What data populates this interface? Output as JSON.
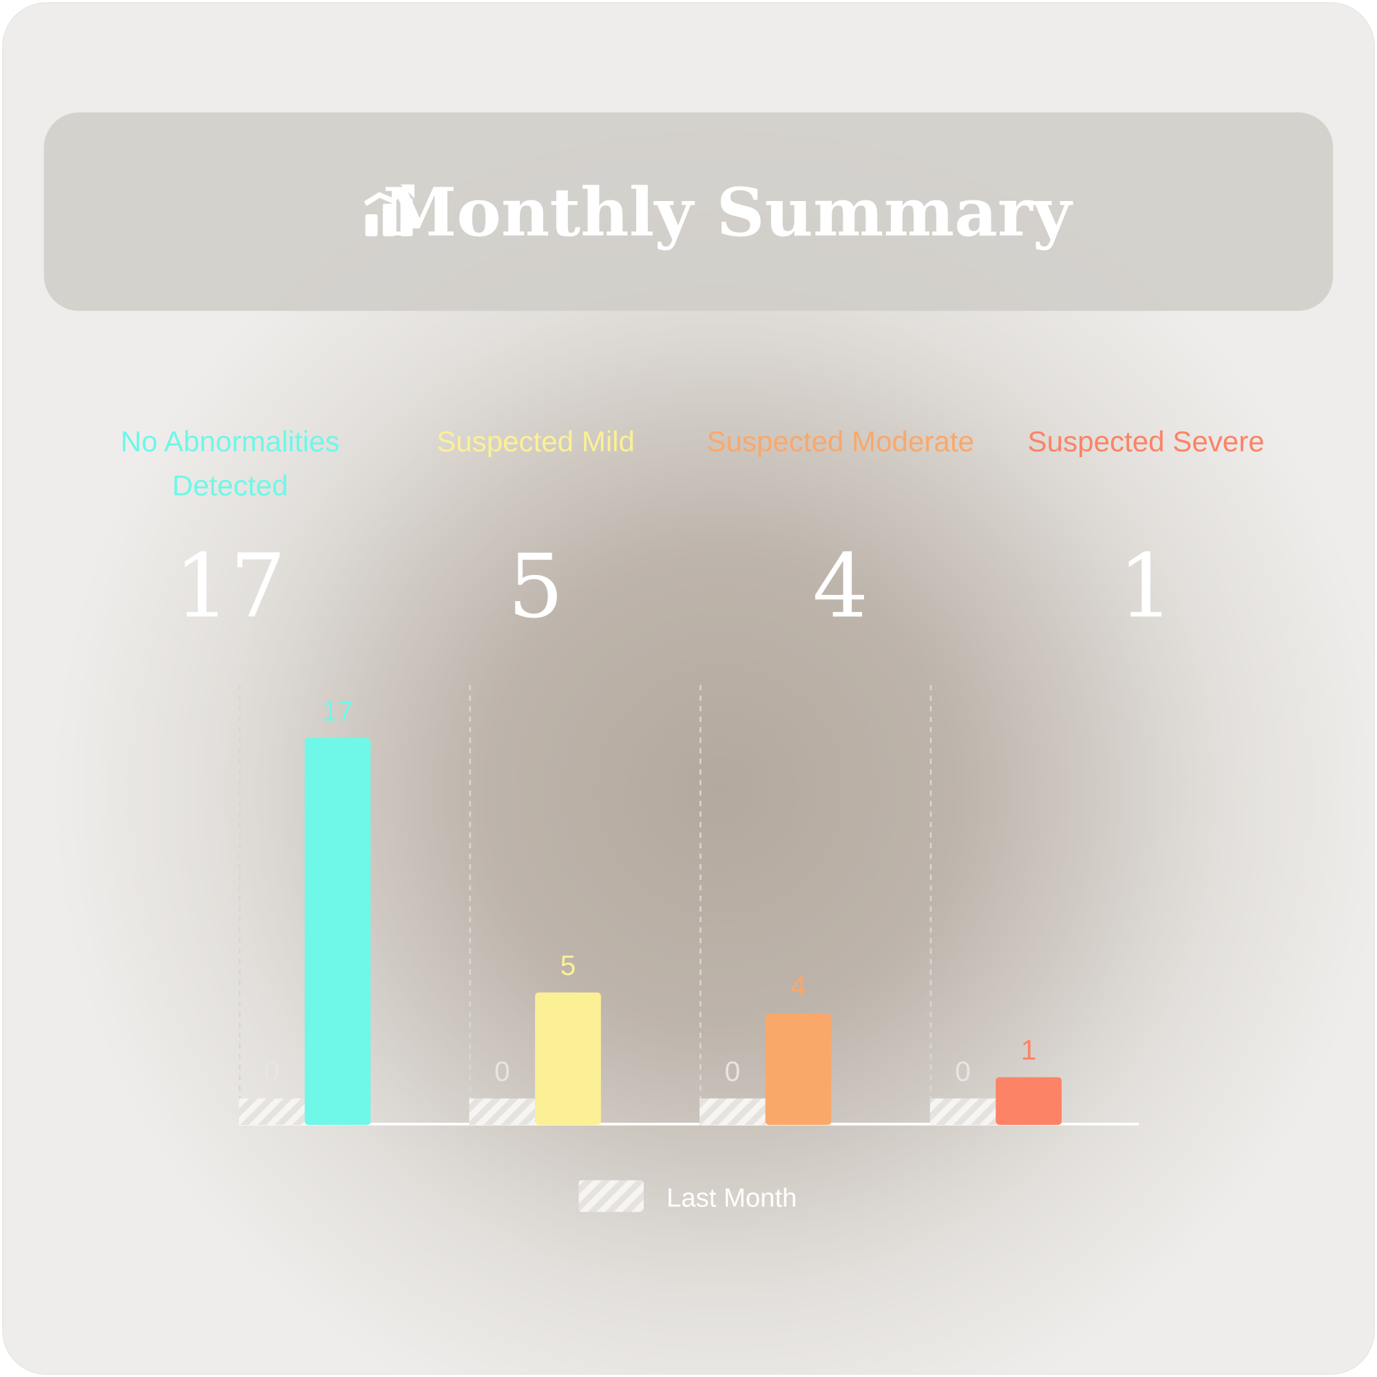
{
  "header": {
    "title": "Monthly Summary"
  },
  "chart_data": {
    "type": "bar",
    "categories": [
      "No Abnormalities Detected",
      "Suspected Mild",
      "Suspected Moderate",
      "Suspected Severe"
    ],
    "series": [
      {
        "name": "Last Month",
        "color": "#e6e3df",
        "values": [
          0,
          0,
          0,
          0
        ]
      },
      {
        "colors": [
          "#6ff7e8",
          "#fcf096",
          "#faa86a",
          "#fc8366"
        ],
        "values": [
          17,
          5,
          4,
          1
        ]
      }
    ],
    "ylim": [
      -1.25,
      19.5
    ]
  }
}
